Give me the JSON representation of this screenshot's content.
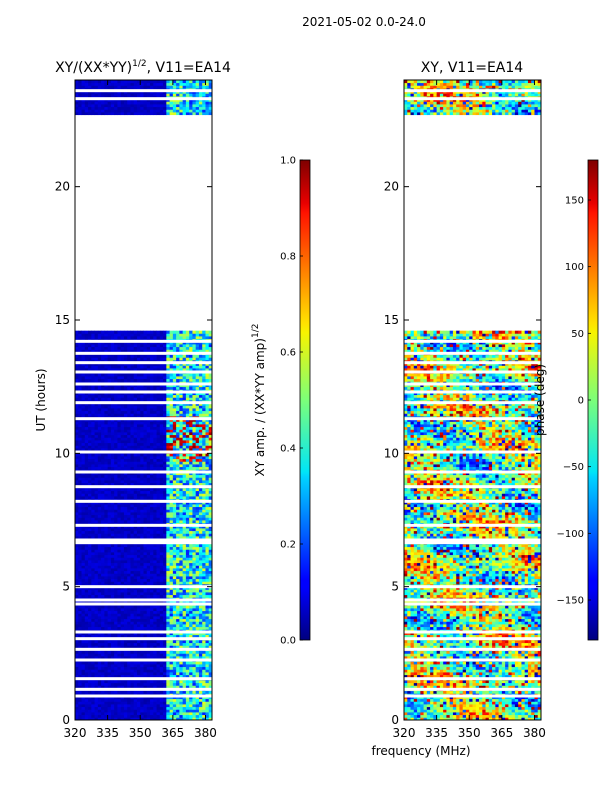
{
  "chart_data": {
    "type": "heatmap",
    "suptitle": "2021-05-02 0.0-24.0",
    "xlabel": "frequency (MHz)",
    "panels": [
      {
        "title": "XY/(XX*YY)",
        "title_exp": "1/2",
        "title_suffix": ", V11=EA14",
        "ylabel": "UT (hours)",
        "xlim": [
          320,
          383
        ],
        "ylim": [
          0,
          24
        ],
        "xticks": [
          "320",
          "335",
          "350",
          "365",
          "380"
        ],
        "yticks": [
          "0",
          "5",
          "10",
          "15",
          "20"
        ],
        "data_ranges_hours": [
          [
            0,
            14.6
          ],
          [
            22.7,
            24
          ]
        ],
        "active_band_mhz": [
          362,
          383
        ],
        "colorbar": {
          "label": "XY amp. / (XX*YY amp)",
          "label_exp": "1/2",
          "range": [
            0.0,
            1.0
          ],
          "ticks": [
            "0.0",
            "0.2",
            "0.4",
            "0.6",
            "0.8",
            "1.0"
          ]
        }
      },
      {
        "title": "XY, V11=EA14",
        "ylabel": "",
        "xlim": [
          320,
          383
        ],
        "ylim": [
          0,
          24
        ],
        "xticks": [
          "320",
          "335",
          "350",
          "365",
          "380"
        ],
        "yticks": [
          "0",
          "5",
          "10",
          "15",
          "20"
        ],
        "data_ranges_hours": [
          [
            0,
            14.6
          ],
          [
            22.7,
            24
          ]
        ],
        "colorbar": {
          "label": "phase (deg)",
          "range": [
            -180,
            180
          ],
          "ticks": [
            "−150",
            "−100",
            "−50",
            "0",
            "50",
            "100",
            "150"
          ]
        }
      }
    ],
    "gap_hours": [
      0.9,
      1.15,
      1.55,
      2.25,
      2.65,
      3.05,
      3.3,
      4.35,
      4.5,
      5.0,
      6.65,
      6.75,
      7.3,
      8.2,
      8.75,
      9.3,
      10.05,
      11.3,
      11.9,
      12.3,
      12.6,
      13.05,
      13.4,
      13.75,
      14.2,
      23.3,
      23.6
    ]
  }
}
